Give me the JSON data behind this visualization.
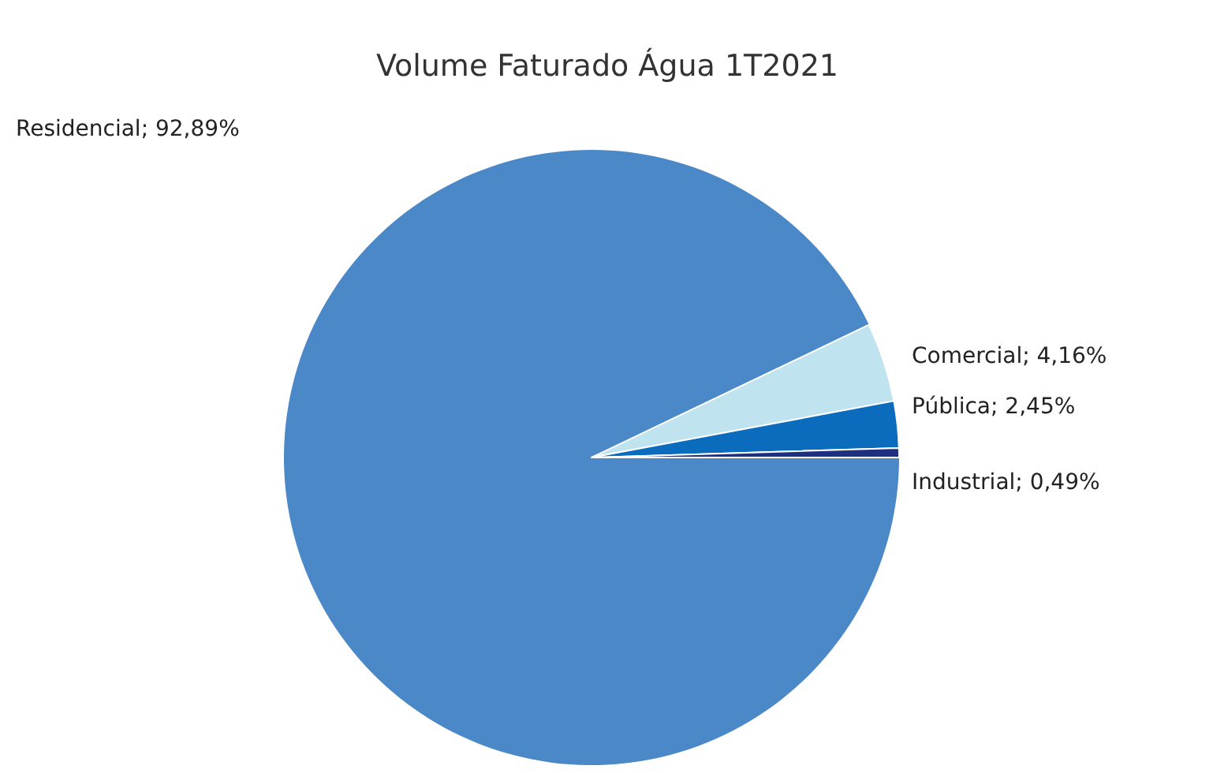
{
  "chart_data": {
    "type": "pie",
    "title": "Volume Faturado Água 1T2021",
    "categories": [
      "Residencial",
      "Comercial",
      "Pública",
      "Industrial"
    ],
    "values": [
      92.89,
      4.16,
      2.45,
      0.49
    ],
    "value_labels": [
      "92,89%",
      "4,16%",
      "2,45%",
      "0,49%"
    ],
    "colors": [
      "#4a88c7",
      "#bfe3ef",
      "#0b6bbd",
      "#1f2f7f"
    ]
  }
}
